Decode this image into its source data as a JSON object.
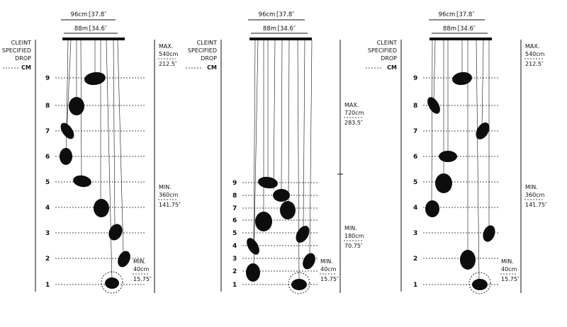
{
  "colors": {
    "ink": "#111111",
    "background": "#ffffff",
    "pendant": "#0d0d0d"
  },
  "panels": [
    {
      "top_width": "96cm [37.8″",
      "canopy_width": "88m [34.6″",
      "client_label": [
        "CLEINT",
        "SPECIFIED",
        "DROP",
        "CM"
      ],
      "levels": [
        "9",
        "8",
        "7",
        "6",
        "5",
        "4",
        "3",
        "2",
        "1"
      ],
      "max": [
        "MAX.",
        "540cm",
        "212.5″"
      ],
      "min": [
        "MIN.",
        "360cm",
        "141.75″"
      ],
      "min_clearance": [
        "MIN.",
        "40cm",
        "15.75″"
      ]
    },
    {
      "top_width": "96cm [37.8″",
      "canopy_width": "88m [34.6″",
      "client_label": [
        "CLEINT",
        "SPECIFIED",
        "DROP",
        "CM"
      ],
      "levels": [
        "9",
        "8",
        "7",
        "6",
        "5",
        "4",
        "3",
        "2",
        "1"
      ],
      "max": [
        "MAX.",
        "720cm",
        "283.5″"
      ],
      "min": [
        "MIN.",
        "180cm",
        "70.75″"
      ],
      "min_clearance": [
        "MIN.",
        "40cm",
        "15.75″"
      ]
    },
    {
      "top_width": "96cm [37.8″",
      "canopy_width": "88m [34.6″",
      "client_label": [
        "CLEINT",
        "SPECIFIED",
        "DROP",
        "CM"
      ],
      "levels": [
        "9",
        "8",
        "7",
        "6",
        "5",
        "4",
        "3",
        "2",
        "1"
      ],
      "max": [
        "MAX.",
        "540cm",
        "212.5″"
      ],
      "min": [
        "MIN.",
        "360cm",
        "141.75″"
      ],
      "min_clearance": [
        "MIN.",
        "40cm",
        "15.75″"
      ]
    }
  ]
}
